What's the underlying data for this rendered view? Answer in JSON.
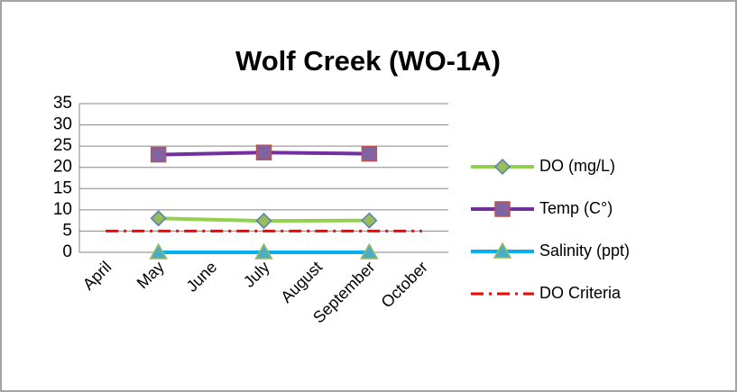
{
  "chart_data": {
    "type": "line",
    "title": "Wolf Creek (WO-1A)",
    "categories": [
      "April",
      "May",
      "June",
      "July",
      "August",
      "September",
      "October"
    ],
    "series": [
      {
        "name": "DO (mg/L)",
        "color": "#92d050",
        "marker": "diamond",
        "marker_color": "#9bbb59",
        "marker_edge": "#4f81bd",
        "values": [
          null,
          8,
          null,
          7.4,
          null,
          7.5,
          null
        ]
      },
      {
        "name": "Temp (C°)",
        "color": "#7030a0",
        "marker": "square",
        "marker_color": "#8064a2",
        "marker_edge": "#c0504d",
        "values": [
          null,
          23,
          null,
          23.5,
          null,
          23.2,
          null
        ]
      },
      {
        "name": "Salinity (ppt)",
        "color": "#00b0f0",
        "marker": "triangle",
        "marker_color": "#4bacc6",
        "marker_edge": "#9bbb59",
        "values": [
          null,
          0,
          null,
          0,
          null,
          0,
          null
        ]
      },
      {
        "name": "DO Criteria",
        "color": "#ff0000",
        "dash": "14 6 3 6",
        "values": [
          5,
          5,
          5,
          5,
          5,
          5,
          5
        ]
      }
    ],
    "connect_gaps": true,
    "ylim": [
      0,
      35
    ],
    "yticks": [
      0,
      5,
      10,
      15,
      20,
      25,
      30,
      35
    ],
    "grid": true,
    "legend": "right"
  }
}
